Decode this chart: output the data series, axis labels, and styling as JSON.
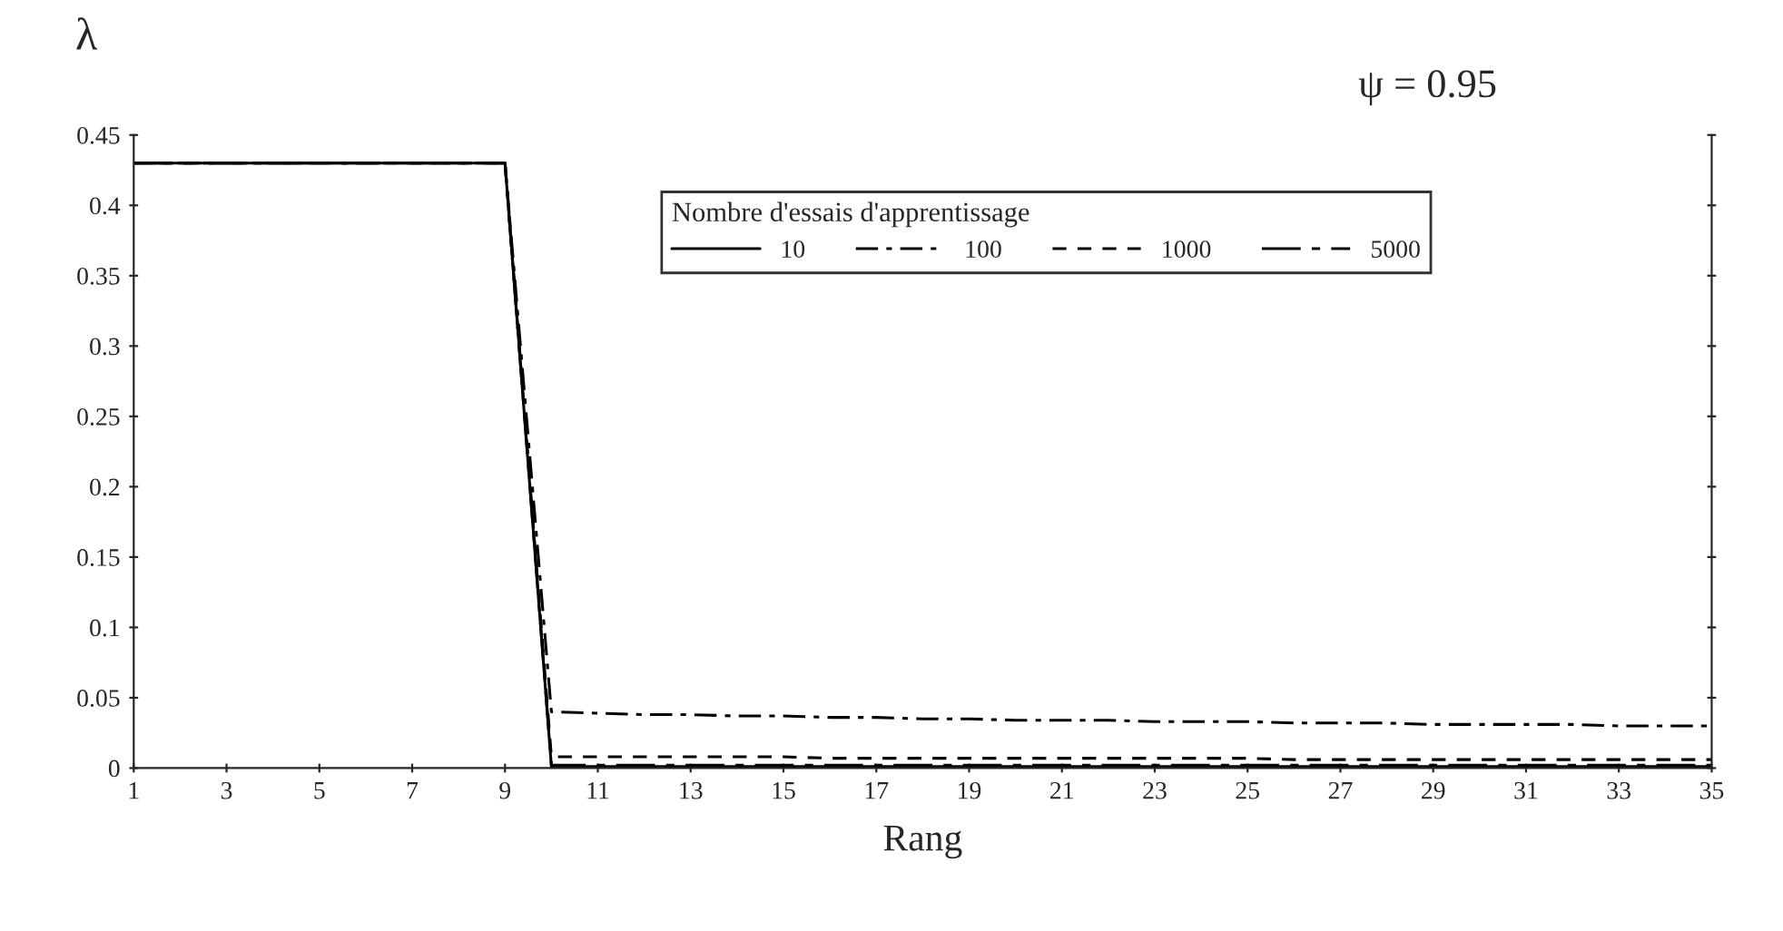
{
  "chart_data": {
    "type": "line",
    "xlabel": "Rang",
    "ylabel": "λ",
    "legend_title": "Nombre d'essais d'apprentissage",
    "annotations": [
      "ψ = 0.95"
    ],
    "x": [
      1,
      2,
      3,
      4,
      5,
      6,
      7,
      8,
      9,
      10,
      11,
      12,
      13,
      14,
      15,
      16,
      17,
      18,
      19,
      20,
      21,
      22,
      23,
      24,
      25,
      26,
      27,
      28,
      29,
      30,
      31,
      32,
      33,
      34,
      35
    ],
    "series": [
      {
        "name": "10",
        "color": "#000000",
        "line_style": "solid",
        "values": [
          0.43,
          0.43,
          0.43,
          0.43,
          0.43,
          0.43,
          0.43,
          0.43,
          0.43,
          0.001,
          0.001,
          0.001,
          0.001,
          0.001,
          0.001,
          0.001,
          0.001,
          0.001,
          0.001,
          0.001,
          0.001,
          0.001,
          0.001,
          0.001,
          0.001,
          0.001,
          0.001,
          0.001,
          0.001,
          0.001,
          0.001,
          0.001,
          0.001,
          0.001,
          0.001
        ]
      },
      {
        "name": "100",
        "color": "#000000",
        "line_style": "dashdot",
        "values": [
          0.43,
          0.43,
          0.43,
          0.43,
          0.43,
          0.43,
          0.43,
          0.43,
          0.43,
          0.04,
          0.039,
          0.038,
          0.038,
          0.037,
          0.037,
          0.036,
          0.036,
          0.035,
          0.035,
          0.034,
          0.034,
          0.034,
          0.033,
          0.033,
          0.033,
          0.032,
          0.032,
          0.032,
          0.031,
          0.031,
          0.031,
          0.031,
          0.03,
          0.03,
          0.03
        ]
      },
      {
        "name": "1000",
        "color": "#000000",
        "line_style": "dashed",
        "values": [
          0.43,
          0.43,
          0.43,
          0.43,
          0.43,
          0.43,
          0.43,
          0.43,
          0.43,
          0.008,
          0.008,
          0.008,
          0.008,
          0.008,
          0.008,
          0.007,
          0.007,
          0.007,
          0.007,
          0.007,
          0.007,
          0.007,
          0.007,
          0.007,
          0.007,
          0.006,
          0.006,
          0.006,
          0.006,
          0.006,
          0.006,
          0.006,
          0.006,
          0.006,
          0.006
        ]
      },
      {
        "name": "5000",
        "color": "#000000",
        "line_style": "longdashdot",
        "values": [
          0.43,
          0.43,
          0.43,
          0.43,
          0.43,
          0.43,
          0.43,
          0.43,
          0.43,
          0.002,
          0.002,
          0.002,
          0.002,
          0.002,
          0.002,
          0.002,
          0.002,
          0.002,
          0.002,
          0.002,
          0.002,
          0.002,
          0.002,
          0.002,
          0.002,
          0.002,
          0.002,
          0.002,
          0.002,
          0.002,
          0.002,
          0.002,
          0.002,
          0.002,
          0.002
        ]
      }
    ],
    "xlim": [
      1,
      35
    ],
    "xticks": [
      1,
      3,
      5,
      7,
      9,
      11,
      13,
      15,
      17,
      19,
      21,
      23,
      25,
      27,
      29,
      31,
      33,
      35
    ],
    "ylim": [
      0,
      0.45
    ],
    "yticks": [
      0,
      0.05,
      0.1,
      0.15,
      0.2,
      0.25,
      0.3,
      0.35,
      0.4,
      0.45
    ],
    "grid": false,
    "legend": "top right"
  }
}
